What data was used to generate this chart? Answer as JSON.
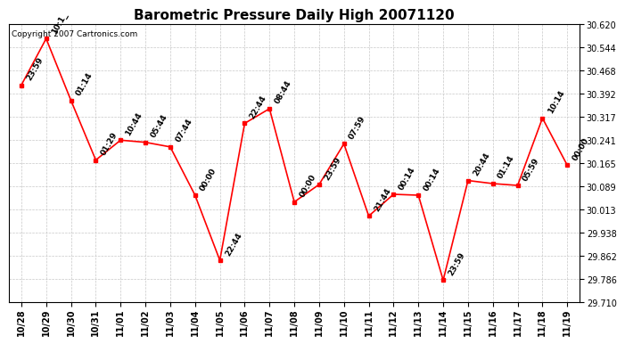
{
  "title": "Barometric Pressure Daily High 20071120",
  "copyright": "Copyright 2007 Cartronics.com",
  "x_labels": [
    "10/28",
    "10/29",
    "10/30",
    "10/31",
    "11/01",
    "11/02",
    "11/03",
    "11/04",
    "11/05",
    "11/06",
    "11/07",
    "11/08",
    "11/09",
    "11/10",
    "11/11",
    "11/12",
    "11/13",
    "11/14",
    "11/15",
    "11/16",
    "11/17",
    "11/18",
    "11/19"
  ],
  "y_values": [
    30.42,
    30.572,
    30.37,
    30.175,
    30.24,
    30.233,
    30.218,
    30.06,
    29.847,
    30.295,
    30.343,
    30.038,
    30.095,
    30.228,
    29.992,
    30.063,
    30.06,
    29.782,
    30.108,
    30.098,
    30.092,
    30.312,
    30.158
  ],
  "time_labels": [
    "23:59",
    "10:1_",
    "01:14",
    "01:29",
    "10:44",
    "05:44",
    "07:44",
    "00:00",
    "22:44",
    "22:44",
    "08:44",
    "00:00",
    "23:59",
    "07:59",
    "21:44",
    "00:14",
    "00:14",
    "23:59",
    "20:44",
    "01:14",
    "05:59",
    "10:14",
    "00:00"
  ],
  "ylim_min": 29.71,
  "ylim_max": 30.62,
  "yticks": [
    29.71,
    29.786,
    29.862,
    29.938,
    30.013,
    30.089,
    30.165,
    30.241,
    30.317,
    30.392,
    30.468,
    30.544,
    30.62
  ],
  "line_color": "#ff0000",
  "marker_color": "#ff0000",
  "bg_color": "#ffffff",
  "grid_color": "#c8c8c8",
  "title_fontsize": 11,
  "annot_fontsize": 6.5,
  "tick_fontsize": 7,
  "copyright_fontsize": 6.5
}
